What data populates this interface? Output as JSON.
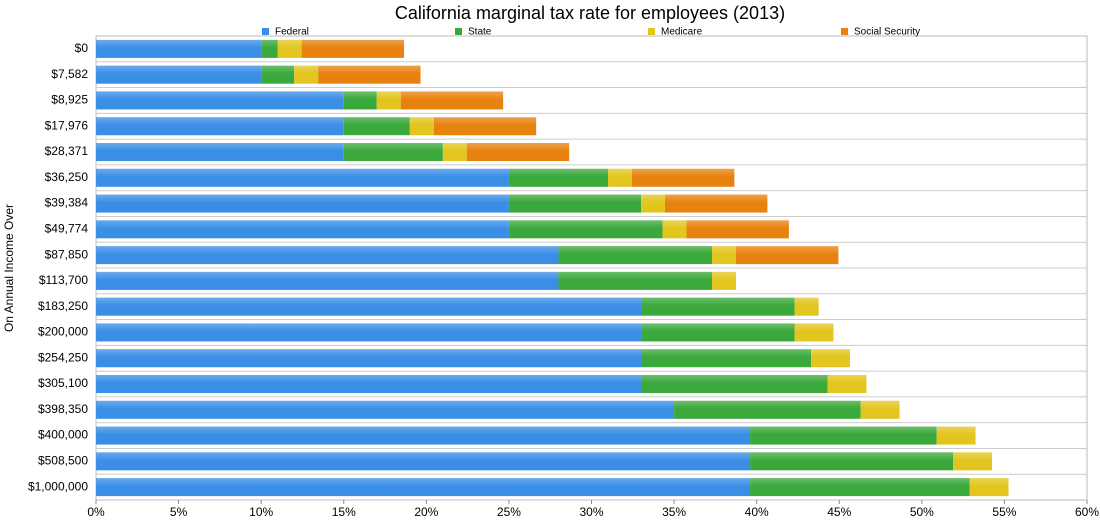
{
  "chart_data": {
    "type": "stacked-barh",
    "title": "California marginal tax rate for employees (2013)",
    "y_label": "On Annual Income Over",
    "categories": [
      "$0",
      "$7,582",
      "$8,925",
      "$17,976",
      "$28,371",
      "$36,250",
      "$39,384",
      "$49,774",
      "$87,850",
      "$113,700",
      "$183,250",
      "$200,000",
      "$254,250",
      "$305,100",
      "$398,350",
      "$400,000",
      "$508,500",
      "$1,000,000"
    ],
    "series": [
      {
        "name": "Federal",
        "color": "#3a8ee6",
        "values": [
          10,
          10,
          15,
          15,
          15,
          25,
          25,
          25,
          28,
          28,
          33,
          33,
          33,
          33,
          35,
          39.6,
          39.6,
          39.6
        ]
      },
      {
        "name": "State",
        "color": "#3aa83a",
        "values": [
          1,
          2,
          2,
          4,
          6,
          6,
          8,
          9.3,
          9.3,
          9.3,
          9.3,
          9.3,
          10.3,
          11.3,
          11.3,
          11.3,
          12.3,
          13.3
        ]
      },
      {
        "name": "Medicare",
        "color": "#e2c51e",
        "values": [
          1.45,
          1.45,
          1.45,
          1.45,
          1.45,
          1.45,
          1.45,
          1.45,
          1.45,
          1.45,
          1.45,
          2.35,
          2.35,
          2.35,
          2.35,
          2.35,
          2.35,
          2.35
        ]
      },
      {
        "name": "Social Security",
        "color": "#e8820f",
        "values": [
          6.2,
          6.2,
          6.2,
          6.2,
          6.2,
          6.2,
          6.2,
          6.2,
          6.2,
          null,
          null,
          null,
          null,
          null,
          null,
          null,
          null,
          null
        ]
      }
    ],
    "xlim": [
      0,
      60
    ],
    "xticks": [
      {
        "value": 0,
        "label": "0%"
      },
      {
        "value": 5,
        "label": "5%"
      },
      {
        "value": 10,
        "label": "10%"
      },
      {
        "value": 15,
        "label": "15%"
      },
      {
        "value": 20,
        "label": "20%"
      },
      {
        "value": 25,
        "label": "25%"
      },
      {
        "value": 30,
        "label": "30%"
      },
      {
        "value": 35,
        "label": "35%"
      },
      {
        "value": 40,
        "label": "40%"
      },
      {
        "value": 45,
        "label": "45%"
      },
      {
        "value": 50,
        "label": "50%"
      },
      {
        "value": 55,
        "label": "55%"
      },
      {
        "value": 60,
        "label": "60%"
      }
    ],
    "grid": true,
    "legend": "top"
  }
}
